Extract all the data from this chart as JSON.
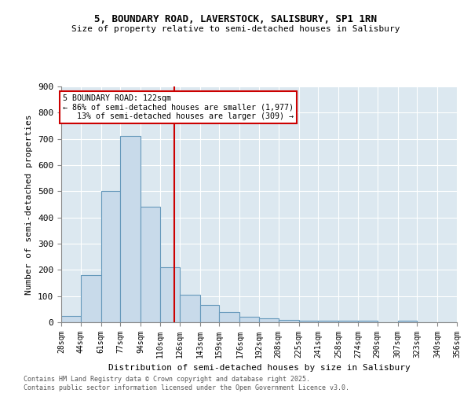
{
  "title1": "5, BOUNDARY ROAD, LAVERSTOCK, SALISBURY, SP1 1RN",
  "title2": "Size of property relative to semi-detached houses in Salisbury",
  "xlabel": "Distribution of semi-detached houses by size in Salisbury",
  "ylabel": "Number of semi-detached properties",
  "bar_color": "#c8daea",
  "bar_edge_color": "#6699bb",
  "background_color": "#dce8f0",
  "fig_background": "#ffffff",
  "grid_color": "#ffffff",
  "annotation_line_color": "#cc0000",
  "annotation_box_color": "#cc0000",
  "annotation_line1": "5 BOUNDARY ROAD: 122sqm",
  "annotation_line2": "← 86% of semi-detached houses are smaller (1,977)",
  "annotation_line3": "   13% of semi-detached houses are larger (309) →",
  "property_size": 122,
  "bins": [
    28,
    44,
    61,
    77,
    94,
    110,
    126,
    143,
    159,
    176,
    192,
    208,
    225,
    241,
    258,
    274,
    290,
    307,
    323,
    340,
    356
  ],
  "counts": [
    25,
    180,
    500,
    710,
    440,
    210,
    105,
    65,
    40,
    20,
    15,
    10,
    5,
    5,
    5,
    5,
    0,
    5,
    0,
    0
  ],
  "ylim": [
    0,
    900
  ],
  "yticks": [
    0,
    100,
    200,
    300,
    400,
    500,
    600,
    700,
    800,
    900
  ],
  "footer1": "Contains HM Land Registry data © Crown copyright and database right 2025.",
  "footer2": "Contains public sector information licensed under the Open Government Licence v3.0."
}
